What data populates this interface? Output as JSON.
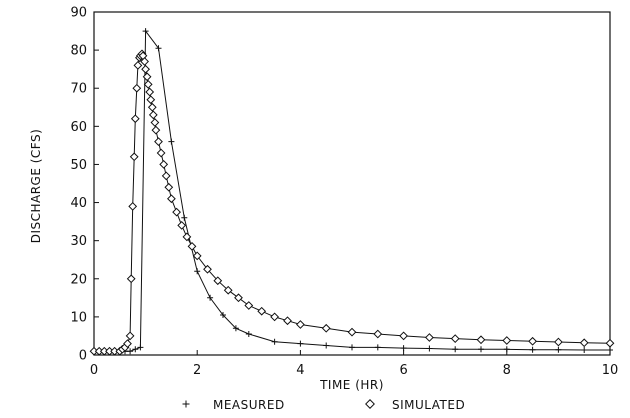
{
  "chart_data": {
    "type": "line",
    "title": "",
    "xlabel": "TIME (HR)",
    "ylabel": "DISCHARGE (CFS)",
    "xlim": [
      0,
      10
    ],
    "ylim": [
      0,
      90
    ],
    "x_ticks": [
      0,
      2,
      4,
      6,
      8,
      10
    ],
    "y_ticks": [
      0,
      10,
      20,
      30,
      40,
      50,
      60,
      70,
      80,
      90
    ],
    "grid": false,
    "legend_position": "bottom",
    "series": [
      {
        "name": "MEASURED",
        "marker": "+",
        "x": [
          0,
          0.1,
          0.2,
          0.3,
          0.4,
          0.5,
          0.6,
          0.7,
          0.8,
          0.9,
          1.0,
          1.25,
          1.5,
          1.75,
          2.0,
          2.25,
          2.5,
          2.75,
          3.0,
          3.5,
          4.0,
          4.5,
          5.0,
          5.5,
          6.0,
          6.5,
          7.0,
          7.5,
          8.0,
          8.5,
          9.0,
          9.5,
          10.0
        ],
        "y": [
          1,
          1,
          1,
          1,
          1,
          1,
          1,
          1,
          1.5,
          2,
          85,
          80.5,
          56,
          36,
          22,
          15,
          10.5,
          7,
          5.5,
          3.5,
          3,
          2.5,
          2,
          2,
          1.8,
          1.7,
          1.5,
          1.5,
          1.5,
          1.4,
          1.4,
          1.3,
          1.3
        ]
      },
      {
        "name": "SIMULATED",
        "marker": "diamond",
        "x": [
          0,
          0.1,
          0.2,
          0.3,
          0.4,
          0.5,
          0.55,
          0.6,
          0.65,
          0.7,
          0.72,
          0.75,
          0.78,
          0.8,
          0.83,
          0.85,
          0.88,
          0.9,
          0.93,
          0.95,
          0.98,
          1.0,
          1.03,
          1.05,
          1.08,
          1.1,
          1.13,
          1.15,
          1.18,
          1.2,
          1.25,
          1.3,
          1.35,
          1.4,
          1.45,
          1.5,
          1.6,
          1.7,
          1.8,
          1.9,
          2.0,
          2.2,
          2.4,
          2.6,
          2.8,
          3.0,
          3.25,
          3.5,
          3.75,
          4.0,
          4.5,
          5.0,
          5.5,
          6.0,
          6.5,
          7.0,
          7.5,
          8.0,
          8.5,
          9.0,
          9.5,
          10.0
        ],
        "y": [
          1,
          1,
          1,
          1,
          1,
          1,
          1.5,
          2,
          3,
          5,
          20,
          39,
          52,
          62,
          70,
          76,
          78,
          78.5,
          79,
          78.5,
          77,
          75,
          73,
          71,
          69,
          67,
          65,
          63,
          61,
          59,
          56,
          53,
          50,
          47,
          44,
          41,
          37.5,
          34,
          31,
          28.5,
          26,
          22.5,
          19.5,
          17,
          15,
          13,
          11.5,
          10,
          9,
          8,
          7,
          6,
          5.5,
          5,
          4.6,
          4.3,
          4,
          3.8,
          3.6,
          3.4,
          3.2,
          3.1
        ]
      }
    ]
  }
}
